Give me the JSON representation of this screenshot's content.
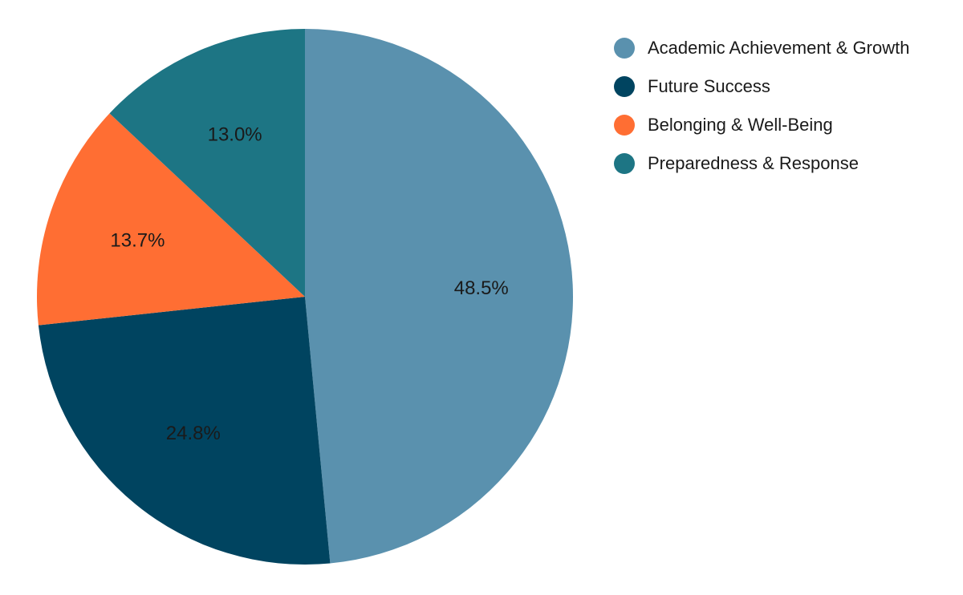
{
  "chart_data": {
    "type": "pie",
    "title": "",
    "legend_position": "top-right",
    "slices": [
      {
        "label": "Academic Achievement & Growth",
        "value": 48.5,
        "display": "48.5%",
        "color": "#5A91AE"
      },
      {
        "label": "Future Success",
        "value": 24.8,
        "display": "24.8%",
        "color": "#004460"
      },
      {
        "label": "Belonging & Well-Being",
        "value": 13.7,
        "display": "13.7%",
        "color": "#FF6E33"
      },
      {
        "label": "Preparedness & Response",
        "value": 13.0,
        "display": "13.0%",
        "color": "#1D7584"
      }
    ]
  }
}
